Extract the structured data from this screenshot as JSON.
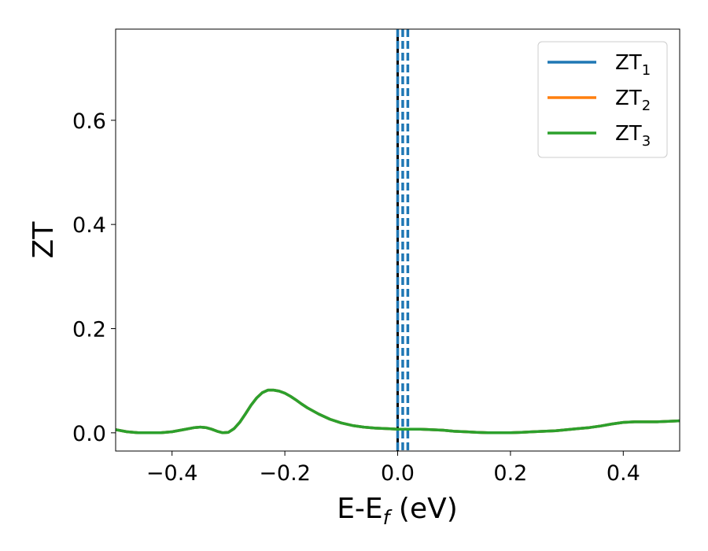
{
  "chart_data": {
    "type": "line",
    "title": "",
    "xlabel_main": "E-E",
    "xlabel_sub": "f",
    "xlabel_unit": " (eV)",
    "ylabel": "ZT",
    "xlim": [
      -0.5,
      0.5
    ],
    "ylim": [
      -0.035,
      0.775
    ],
    "xticks": [
      -0.4,
      -0.2,
      0.0,
      0.2,
      0.4
    ],
    "xtick_labels": [
      "−0.4",
      "−0.2",
      "0.0",
      "0.2",
      "0.4"
    ],
    "yticks": [
      0.0,
      0.2,
      0.4,
      0.6
    ],
    "ytick_labels": [
      "0.0",
      "0.2",
      "0.4",
      "0.6"
    ],
    "grid": false,
    "legend_position": "top-right",
    "vlines": {
      "solid_black": [
        0.0
      ],
      "dashed_blue": [
        0.0,
        0.009,
        0.018
      ]
    },
    "x": [
      -0.5,
      -0.48,
      -0.46,
      -0.44,
      -0.42,
      -0.4,
      -0.38,
      -0.36,
      -0.35,
      -0.34,
      -0.33,
      -0.32,
      -0.31,
      -0.3,
      -0.29,
      -0.28,
      -0.27,
      -0.26,
      -0.25,
      -0.24,
      -0.23,
      -0.22,
      -0.21,
      -0.2,
      -0.19,
      -0.18,
      -0.17,
      -0.16,
      -0.14,
      -0.12,
      -0.1,
      -0.08,
      -0.06,
      -0.04,
      -0.02,
      0.0,
      0.02,
      0.04,
      0.06,
      0.08,
      0.1,
      0.12,
      0.14,
      0.16,
      0.18,
      0.2,
      0.22,
      0.24,
      0.26,
      0.28,
      0.3,
      0.32,
      0.34,
      0.36,
      0.38,
      0.4,
      0.42,
      0.44,
      0.46,
      0.48,
      0.5
    ],
    "series": [
      {
        "name_main": "ZT",
        "name_sub": "1",
        "color": "#1f77b4",
        "values": [
          0.006,
          0.002,
          0.0,
          0.0,
          0.0,
          0.002,
          0.006,
          0.01,
          0.011,
          0.01,
          0.007,
          0.003,
          0.0,
          0.001,
          0.008,
          0.02,
          0.036,
          0.053,
          0.067,
          0.077,
          0.082,
          0.082,
          0.08,
          0.076,
          0.07,
          0.063,
          0.055,
          0.048,
          0.036,
          0.026,
          0.019,
          0.014,
          0.011,
          0.009,
          0.008,
          0.007,
          0.007,
          0.007,
          0.006,
          0.005,
          0.003,
          0.002,
          0.001,
          0.0,
          0.0,
          0.0,
          0.001,
          0.002,
          0.003,
          0.004,
          0.006,
          0.008,
          0.01,
          0.013,
          0.017,
          0.02,
          0.021,
          0.021,
          0.021,
          0.022,
          0.023
        ]
      },
      {
        "name_main": "ZT",
        "name_sub": "2",
        "color": "#ff7f0e",
        "values": [
          0.006,
          0.002,
          0.0,
          0.0,
          0.0,
          0.002,
          0.006,
          0.01,
          0.011,
          0.01,
          0.007,
          0.003,
          0.0,
          0.001,
          0.008,
          0.02,
          0.036,
          0.053,
          0.067,
          0.077,
          0.082,
          0.082,
          0.08,
          0.076,
          0.07,
          0.063,
          0.055,
          0.048,
          0.036,
          0.026,
          0.019,
          0.014,
          0.011,
          0.009,
          0.008,
          0.007,
          0.007,
          0.007,
          0.006,
          0.005,
          0.003,
          0.002,
          0.001,
          0.0,
          0.0,
          0.0,
          0.001,
          0.002,
          0.003,
          0.004,
          0.006,
          0.008,
          0.01,
          0.013,
          0.017,
          0.02,
          0.021,
          0.021,
          0.021,
          0.022,
          0.023
        ]
      },
      {
        "name_main": "ZT",
        "name_sub": "3",
        "color": "#2ca02c",
        "values": [
          0.006,
          0.002,
          0.0,
          0.0,
          0.0,
          0.002,
          0.006,
          0.01,
          0.011,
          0.01,
          0.007,
          0.003,
          0.0,
          0.001,
          0.008,
          0.02,
          0.036,
          0.053,
          0.067,
          0.077,
          0.082,
          0.082,
          0.08,
          0.076,
          0.07,
          0.063,
          0.055,
          0.048,
          0.036,
          0.026,
          0.019,
          0.014,
          0.011,
          0.009,
          0.008,
          0.007,
          0.007,
          0.007,
          0.006,
          0.005,
          0.003,
          0.002,
          0.001,
          0.0,
          0.0,
          0.0,
          0.001,
          0.002,
          0.003,
          0.004,
          0.006,
          0.008,
          0.01,
          0.013,
          0.017,
          0.02,
          0.021,
          0.021,
          0.021,
          0.022,
          0.023
        ]
      }
    ]
  }
}
